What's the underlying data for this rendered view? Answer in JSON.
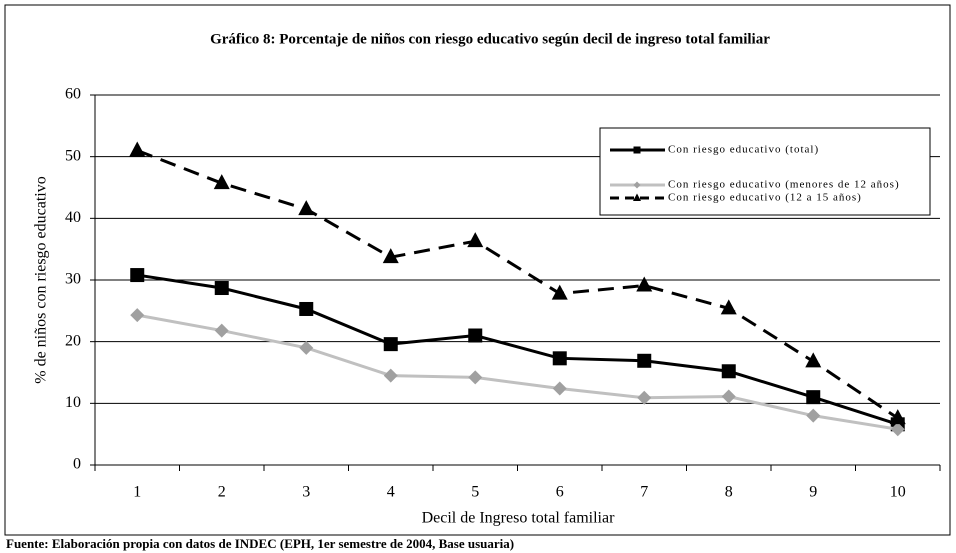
{
  "chart_data": {
    "type": "line",
    "title": "Gráfico 8: Porcentaje de niños con riesgo educativo según decil de ingreso total familiar",
    "x_label": "Decil de Ingreso total familiar",
    "y_label": "% de niños con riesgo educativo",
    "source": "Fuente: Elaboración propia con datos de INDEC (EPH, 1er semestre de 2004, Base usuaria)",
    "categories": [
      "1",
      "2",
      "3",
      "4",
      "5",
      "6",
      "7",
      "8",
      "9",
      "10"
    ],
    "series": [
      {
        "name": "Con riesgo educativo (total)",
        "color": "#000000",
        "marker": "square",
        "linestyle": "solid",
        "values": [
          30.8,
          28.7,
          25.3,
          19.6,
          21.0,
          17.3,
          16.9,
          15.2,
          11.0,
          6.6
        ]
      },
      {
        "name": "Con riesgo educativo (menores de 12 años)",
        "color": "#c0c0c0",
        "marker": "diamond",
        "linestyle": "solid",
        "values": [
          24.3,
          21.8,
          19.0,
          14.5,
          14.2,
          12.4,
          10.9,
          11.1,
          8.0,
          5.8
        ]
      },
      {
        "name": "Con riesgo educativo (12 a 15 años)",
        "color": "#000000",
        "marker": "triangle",
        "linestyle": "dashed",
        "values": [
          51.0,
          45.7,
          41.5,
          33.7,
          36.3,
          27.8,
          29.1,
          25.4,
          16.8,
          7.6
        ]
      }
    ],
    "ylim": [
      0,
      60
    ],
    "yticks": [
      0,
      10,
      20,
      30,
      40,
      50,
      60
    ],
    "grid": true,
    "legend": "upper right"
  }
}
